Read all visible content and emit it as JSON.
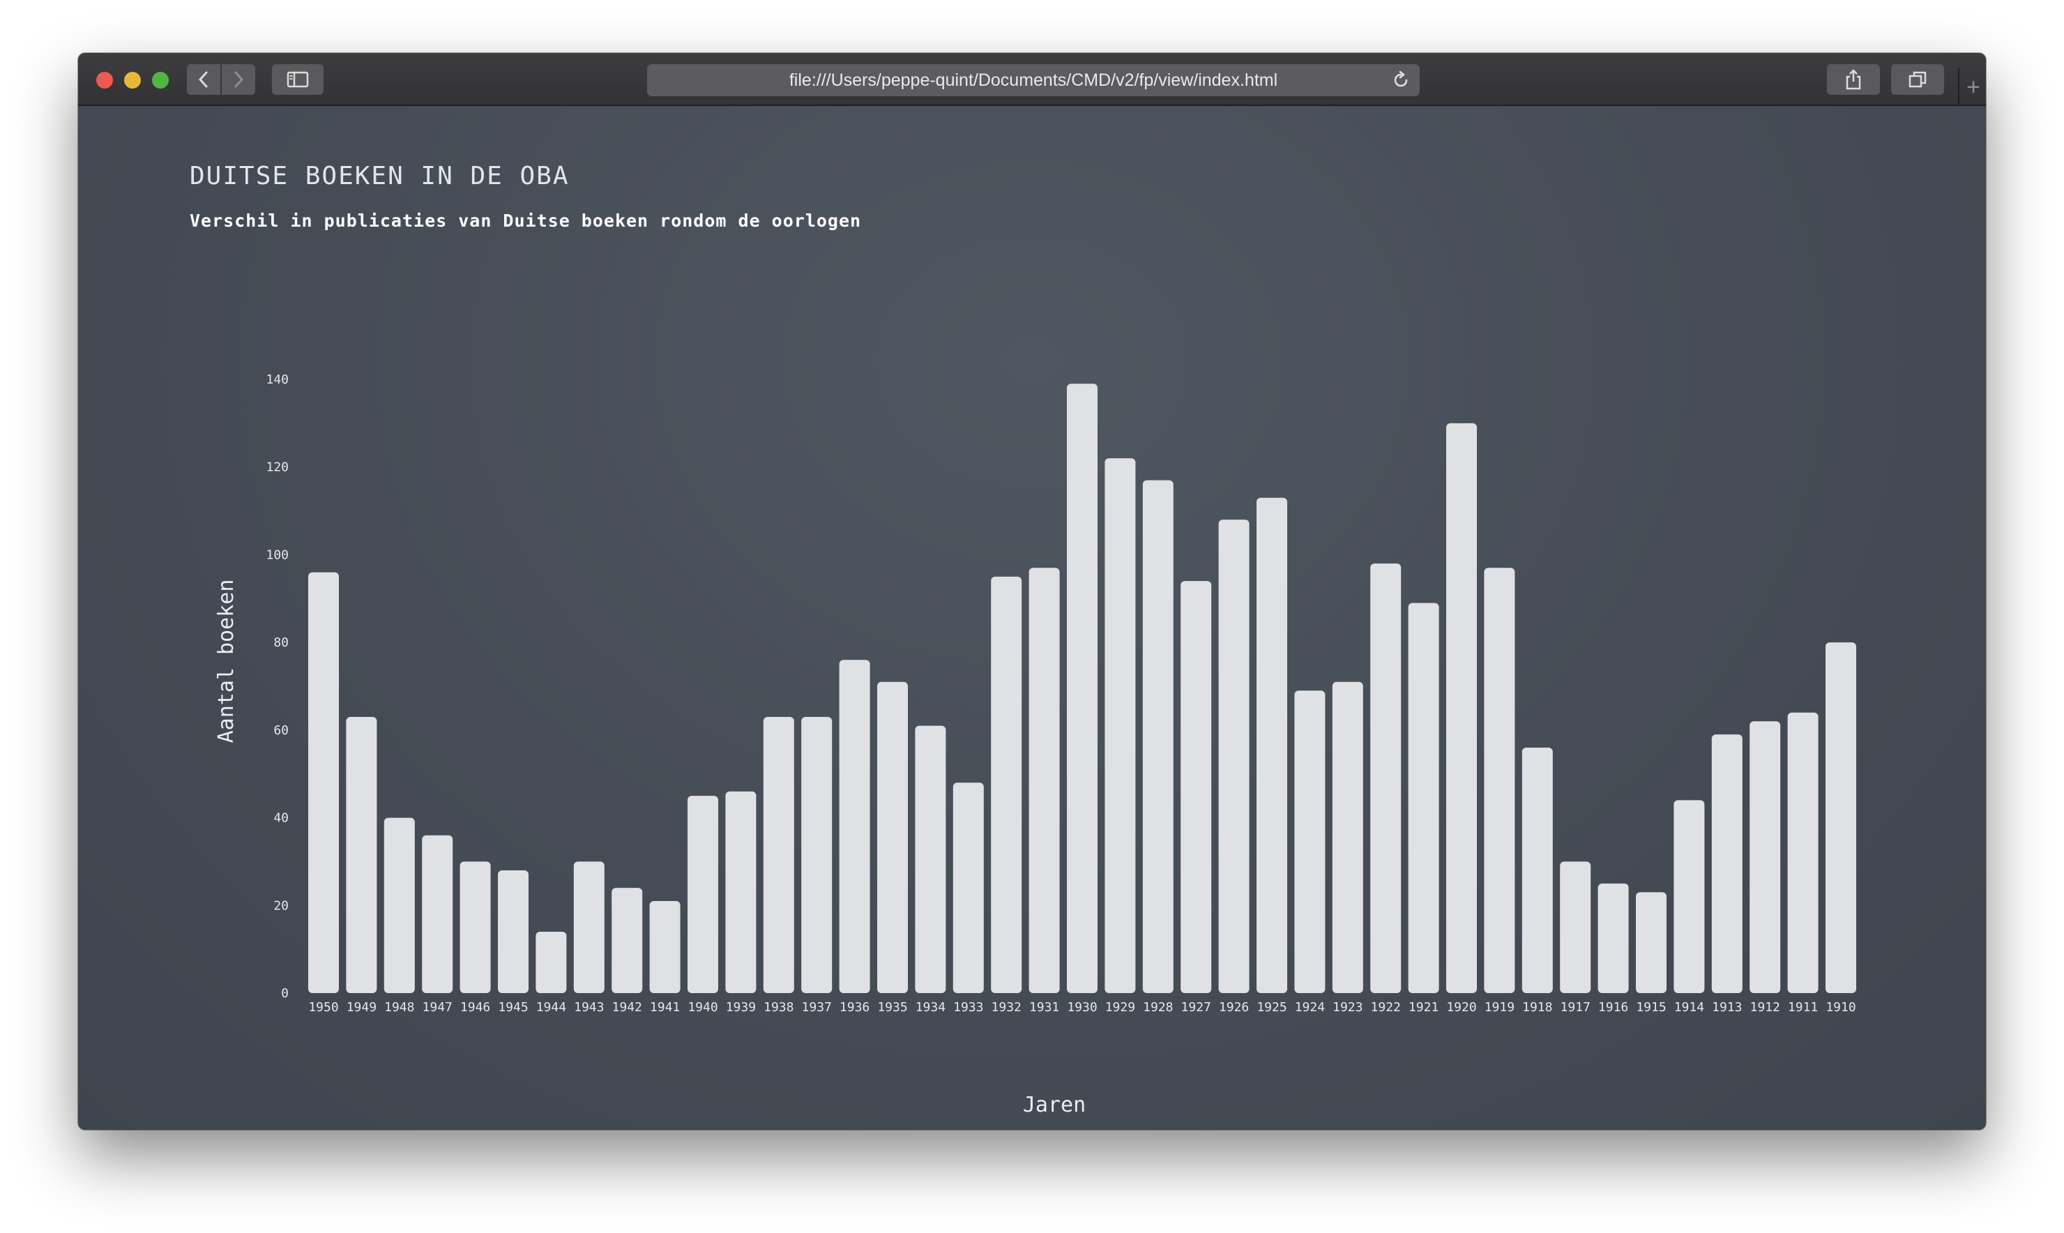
{
  "browser": {
    "url": "file:///Users/peppe-quint/Documents/CMD/v2/fp/view/index.html"
  },
  "page": {
    "title": "DUITSE BOEKEN IN DE OBA",
    "subtitle": "Verschil in publicaties van Duitse boeken rondom de oorlogen"
  },
  "colors": {
    "background": "#454c55",
    "bar": "#dfe1e5",
    "text": "#e6e8ea"
  },
  "chart_data": {
    "type": "bar",
    "xlabel": "Jaren",
    "ylabel": "Aantal boeken",
    "ylim": [
      0,
      140
    ],
    "yticks": [
      0,
      20,
      40,
      60,
      80,
      100,
      120,
      140
    ],
    "grid": false,
    "categories": [
      "1950",
      "1949",
      "1948",
      "1947",
      "1946",
      "1945",
      "1944",
      "1943",
      "1942",
      "1941",
      "1940",
      "1939",
      "1938",
      "1937",
      "1936",
      "1935",
      "1934",
      "1933",
      "1932",
      "1931",
      "1930",
      "1929",
      "1928",
      "1927",
      "1926",
      "1925",
      "1924",
      "1923",
      "1922",
      "1921",
      "1920",
      "1919",
      "1918",
      "1917",
      "1916",
      "1915",
      "1914",
      "1913",
      "1912",
      "1911",
      "1910"
    ],
    "values": [
      96,
      63,
      40,
      36,
      30,
      28,
      14,
      30,
      24,
      21,
      45,
      46,
      63,
      63,
      76,
      71,
      61,
      48,
      95,
      97,
      139,
      122,
      117,
      94,
      108,
      113,
      69,
      71,
      98,
      89,
      130,
      97,
      56,
      30,
      25,
      23,
      44,
      59,
      62,
      64,
      80
    ]
  }
}
